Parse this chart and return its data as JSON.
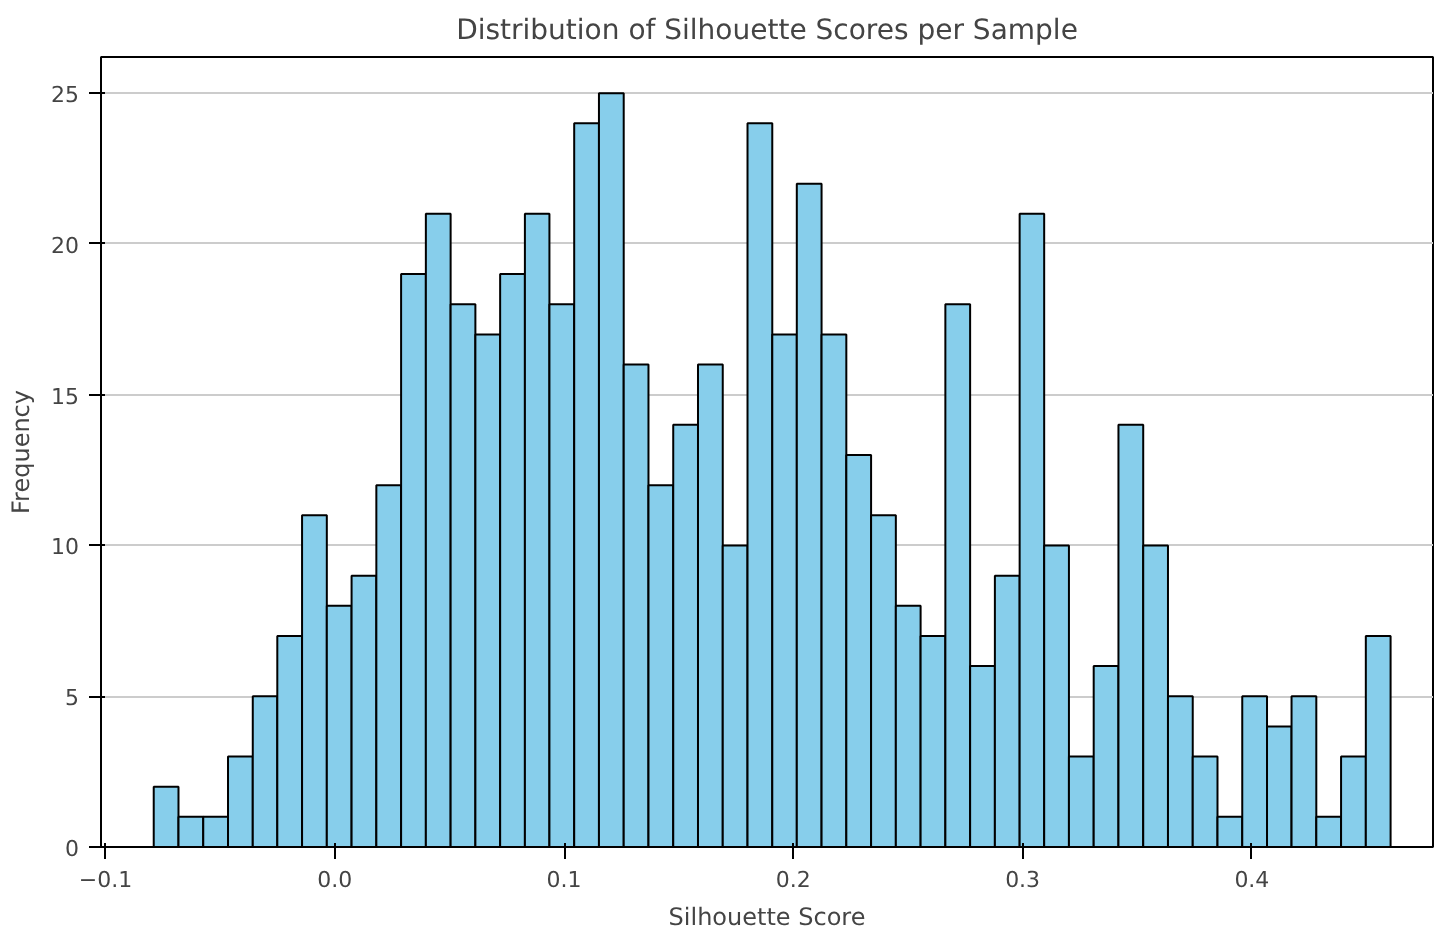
{
  "chart_data": {
    "type": "histogram",
    "title": "Distribution of Silhouette Scores per Sample",
    "xlabel": "Silhouette Score",
    "ylabel": "Frequency",
    "bins": [
      -0.079,
      -0.0682,
      -0.0574,
      -0.0466,
      -0.0358,
      -0.0251,
      -0.0143,
      -0.0035,
      0.0073,
      0.0181,
      0.0289,
      0.0397,
      0.0505,
      0.0613,
      0.0721,
      0.0829,
      0.0936,
      0.1044,
      0.1152,
      0.126,
      0.1368,
      0.1476,
      0.1584,
      0.1692,
      0.18,
      0.1908,
      0.2015,
      0.2123,
      0.2231,
      0.2339,
      0.2447,
      0.2555,
      0.2663,
      0.2771,
      0.2879,
      0.2987,
      0.3094,
      0.3202,
      0.331,
      0.3418,
      0.3526,
      0.3634,
      0.3742,
      0.385,
      0.3958,
      0.4066,
      0.4173,
      0.4281,
      0.4389,
      0.4497,
      0.4605
    ],
    "values": [
      2,
      1,
      1,
      3,
      5,
      7,
      11,
      8,
      9,
      12,
      19,
      21,
      18,
      17,
      19,
      21,
      18,
      24,
      25,
      16,
      12,
      14,
      16,
      10,
      24,
      17,
      22,
      17,
      13,
      11,
      8,
      7,
      18,
      6,
      9,
      21,
      10,
      3,
      6,
      14,
      10,
      5,
      3,
      1,
      5,
      4,
      5,
      1,
      3,
      7
    ],
    "color": "#87ceeb",
    "xlim": [
      -0.102,
      0.479
    ],
    "ylim": [
      0,
      26.2
    ],
    "xticks": [
      {
        "value": -0.1,
        "label": "−0.1"
      },
      {
        "value": 0.0,
        "label": "0.0"
      },
      0.1,
      0.2,
      0.3,
      0.4
    ],
    "yticks": [
      0,
      5,
      10,
      15,
      20,
      25
    ],
    "grid": "y"
  }
}
